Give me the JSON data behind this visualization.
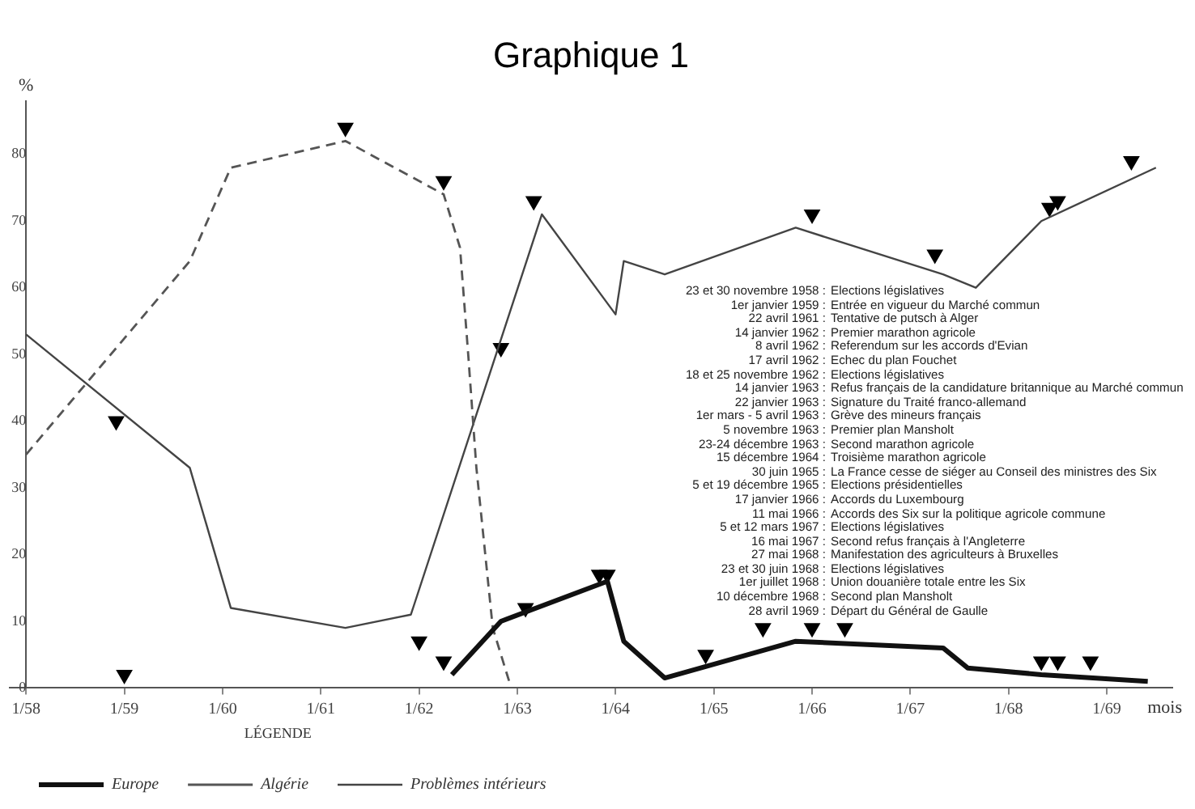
{
  "chart_data": {
    "type": "line",
    "title": "Graphique 1",
    "ylabel": "%",
    "xlabel": "mois",
    "legend": "bottom",
    "legend_title": "LÉGENDE",
    "grid": false,
    "xlim": [
      "1957-11",
      "1969-09"
    ],
    "xticks": [
      {
        "value": "1958-01",
        "label": "1/58"
      },
      {
        "value": "1959-01",
        "label": "1/59"
      },
      {
        "value": "1960-01",
        "label": "1/60"
      },
      {
        "value": "1961-01",
        "label": "1/61"
      },
      {
        "value": "1962-01",
        "label": "1/62"
      },
      {
        "value": "1963-01",
        "label": "1/63"
      },
      {
        "value": "1964-01",
        "label": "1/64"
      },
      {
        "value": "1965-01",
        "label": "1/65"
      },
      {
        "value": "1966-01",
        "label": "1/66"
      },
      {
        "value": "1967-01",
        "label": "1/67"
      },
      {
        "value": "1968-01",
        "label": "1/68"
      },
      {
        "value": "1969-01",
        "label": "1/69"
      }
    ],
    "ylim": [
      0,
      88
    ],
    "yticks": [
      0,
      10,
      20,
      30,
      40,
      50,
      60,
      70,
      80
    ],
    "series": [
      {
        "name": "Europe",
        "color": "#111111",
        "line_style": "solid",
        "x": [
          "1962-05",
          "1962-11",
          "1963-12",
          "1964-02",
          "1964-07",
          "1965-11",
          "1967-05",
          "1967-08",
          "1968-05",
          "1969-06"
        ],
        "values": [
          2,
          10,
          16,
          7,
          1.5,
          7,
          6,
          3,
          2,
          1
        ]
      },
      {
        "name": "Algérie",
        "color": "#555555",
        "line_style": "dashed",
        "x": [
          "1958-01",
          "1959-09",
          "1960-02",
          "1961-04",
          "1962-04",
          "1962-06",
          "1962-07",
          "1962-08",
          "1962-10",
          "1962-12"
        ],
        "values": [
          35,
          64,
          78,
          82,
          74,
          66,
          50,
          33,
          9,
          1
        ]
      },
      {
        "name": "Problèmes intérieurs",
        "color": "#444444",
        "line_style": "solid",
        "x": [
          "1958-01",
          "1959-09",
          "1960-02",
          "1961-04",
          "1961-12",
          "1963-04",
          "1964-01",
          "1964-02",
          "1964-07",
          "1965-11",
          "1967-05",
          "1967-09",
          "1968-05",
          "1969-07"
        ],
        "values": [
          53,
          33,
          12,
          9,
          11,
          71,
          56,
          64,
          62,
          69,
          62,
          60,
          70,
          78
        ]
      },
      {
        "type": "scatter",
        "color": "#000000",
        "marker": "triangle",
        "x": [
          "1958-12",
          "1959-01",
          "1961-04",
          "1962-04",
          "1962-01",
          "1962-04",
          "1962-11",
          "1963-02",
          "1963-03",
          "1963-11",
          "1963-12",
          "1964-12",
          "1965-07",
          "1966-01",
          "1966-05",
          "1966-01",
          "1967-04",
          "1968-05",
          "1968-07",
          "1968-11",
          "1968-06",
          "1968-07",
          "1969-04"
        ],
        "values": [
          40,
          2,
          84,
          76,
          7,
          4,
          51,
          12,
          73,
          17,
          17,
          5,
          9,
          9,
          9,
          71,
          65,
          4,
          4,
          4,
          72,
          73,
          79
        ]
      }
    ],
    "annotations": [
      "23 et 30 novembre 1958 : Elections législatives",
      "1er janvier 1959 : Entrée en vigueur du Marché commun",
      "22 avril 1961 : Tentative de putsch à Alger",
      "14 janvier 1962 : Premier marathon agricole",
      "8 avril 1962 : Referendum sur les accords d'Evian",
      "17 avril 1962 : Echec du plan Fouchet",
      "18 et 25 novembre 1962 : Elections législatives",
      "14 janvier 1963 : Refus français de la candidature britannique au Marché commun",
      "22 janvier 1963 : Signature du Traité franco-allemand",
      "1er mars - 5 avril 1963 : Grève des mineurs français",
      "5 novembre 1963 : Premier plan Mansholt",
      "23-24 décembre 1963 : Second marathon agricole",
      "15 décembre 1964 : Troisième marathon agricole",
      "30 juin 1965 : La France cesse de siéger au Conseil des ministres des Six",
      "5 et 19 décembre 1965 : Elections présidentielles",
      "17 janvier 1966 : Accords du Luxembourg",
      "11 mai 1966 : Accords des Six sur la politique agricole commune",
      "5 et 12 mars 1967 : Elections législatives",
      "16 mai 1967 : Second refus français à l'Angleterre",
      "27 mai 1968 : Manifestation des agriculteurs à Bruxelles",
      "23 et 30 juin 1968 : Elections législatives",
      "1er juillet 1968 : Union douanière totale entre les Six",
      "10 décembre 1968 : Second plan Mansholt",
      "28 avril 1969 : Départ du Général de Gaulle"
    ]
  }
}
